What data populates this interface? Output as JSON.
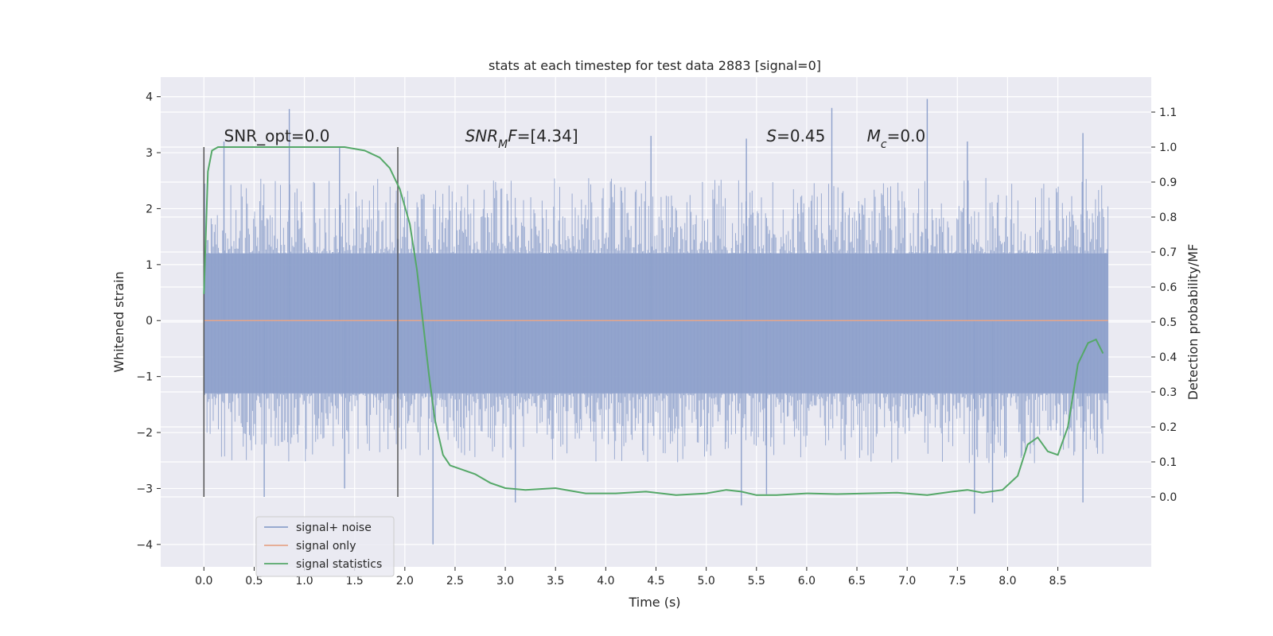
{
  "chart_data": {
    "type": "line",
    "title": "stats at each timestep for test data 2883 [signal=0]",
    "xlabel": "Time (s)",
    "ylabel": "Whitened strain",
    "ylabel_right": "Detection probability/MF",
    "xlim": [
      -0.43,
      9.43
    ],
    "ylim": [
      -4.4,
      4.35
    ],
    "ylim_right": [
      -0.2,
      1.2
    ],
    "x_ticks": [
      0.0,
      0.5,
      1.0,
      1.5,
      2.0,
      2.5,
      3.0,
      3.5,
      4.0,
      4.5,
      5.0,
      5.5,
      6.0,
      6.5,
      7.0,
      7.5,
      8.0,
      8.5
    ],
    "x_tick_labels": [
      "0.0",
      "0.5",
      "1.0",
      "1.5",
      "2.0",
      "2.5",
      "3.0",
      "3.5",
      "4.0",
      "4.5",
      "5.0",
      "5.5",
      "6.0",
      "6.5",
      "7.0",
      "7.5",
      "8.0",
      "8.5"
    ],
    "y_ticks": [
      4,
      3,
      2,
      1,
      0,
      -1,
      -2,
      -3,
      -4
    ],
    "y_tick_labels": [
      "4",
      "3",
      "2",
      "1",
      "0",
      "−1",
      "−2",
      "−3",
      "−4"
    ],
    "y_right_ticks": [
      1.1,
      1.0,
      0.9,
      0.8,
      0.7,
      0.6,
      0.5,
      0.4,
      0.3,
      0.2,
      0.1,
      0.0
    ],
    "y_right_tick_labels": [
      "1.1",
      "1.0",
      "0.9",
      "0.8",
      "0.7",
      "0.6",
      "0.5",
      "0.4",
      "0.3",
      "0.2",
      "0.1",
      "0.0"
    ],
    "grid": true,
    "legend_position": "lower-left",
    "series": [
      {
        "name": "signal+ noise",
        "color": "#8da0cb",
        "x_range": [
          0.0,
          9.0
        ],
        "band_lower": -1.3,
        "band_upper": 1.2,
        "spike_range": [
          -4.0,
          3.95
        ],
        "peaks_up": [
          [
            0.85,
            3.78
          ],
          [
            6.25,
            3.8
          ],
          [
            7.2,
            3.96
          ],
          [
            8.75,
            3.35
          ],
          [
            4.45,
            3.3
          ],
          [
            5.4,
            3.25
          ],
          [
            0.2,
            3.2
          ],
          [
            1.35,
            3.1
          ],
          [
            7.6,
            3.2
          ]
        ],
        "peaks_down": [
          [
            2.28,
            -4.0
          ],
          [
            7.67,
            -3.45
          ],
          [
            5.35,
            -3.3
          ],
          [
            3.1,
            -3.25
          ],
          [
            0.6,
            -3.15
          ],
          [
            5.6,
            -3.1
          ],
          [
            7.85,
            -3.25
          ],
          [
            8.75,
            -3.25
          ],
          [
            1.4,
            -3.0
          ]
        ]
      },
      {
        "name": "signal only",
        "color": "#e5a58a",
        "x": [
          0.0,
          9.0
        ],
        "y": [
          0.0,
          0.0
        ]
      },
      {
        "name": "signal statistics",
        "color": "#55a868",
        "axis": "right",
        "x": [
          0.0,
          0.04,
          0.08,
          0.14,
          0.22,
          0.35,
          0.6,
          1.0,
          1.4,
          1.6,
          1.75,
          1.85,
          1.95,
          2.05,
          2.12,
          2.18,
          2.24,
          2.3,
          2.38,
          2.45,
          2.55,
          2.7,
          2.85,
          3.0,
          3.2,
          3.5,
          3.8,
          4.1,
          4.4,
          4.7,
          5.0,
          5.2,
          5.35,
          5.5,
          5.7,
          6.0,
          6.3,
          6.6,
          6.9,
          7.2,
          7.45,
          7.6,
          7.75,
          7.95,
          8.1,
          8.2,
          8.3,
          8.4,
          8.5,
          8.6,
          8.7,
          8.8,
          8.88,
          8.95
        ],
        "y": [
          0.58,
          0.93,
          0.99,
          1.0,
          1.0,
          1.0,
          1.0,
          1.0,
          1.0,
          0.99,
          0.97,
          0.94,
          0.88,
          0.78,
          0.65,
          0.5,
          0.35,
          0.22,
          0.12,
          0.09,
          0.08,
          0.065,
          0.04,
          0.025,
          0.02,
          0.025,
          0.01,
          0.01,
          0.015,
          0.005,
          0.01,
          0.02,
          0.015,
          0.005,
          0.005,
          0.01,
          0.008,
          0.01,
          0.012,
          0.005,
          0.015,
          0.02,
          0.012,
          0.02,
          0.06,
          0.15,
          0.17,
          0.13,
          0.12,
          0.2,
          0.38,
          0.44,
          0.45,
          0.41
        ]
      }
    ],
    "vertical_markers": [
      {
        "x": 0.0,
        "y_top": 3.1,
        "y_bottom": -3.15
      },
      {
        "x": 1.93,
        "y_top": 3.1,
        "y_bottom": -3.15
      }
    ],
    "annotations": [
      {
        "id": "snr-opt",
        "x": 0.2,
        "y": 3.2,
        "parts": [
          {
            "text": "SNR_opt=0.0",
            "italic": false
          }
        ]
      },
      {
        "id": "snr-mf",
        "x": 2.6,
        "y": 3.2,
        "parts": [
          {
            "text": "SNR",
            "italic": true
          },
          {
            "text": "M",
            "italic": true,
            "sub": true
          },
          {
            "text": "F",
            "italic": true
          },
          {
            "text": "=[4.34]",
            "italic": false
          }
        ]
      },
      {
        "id": "s-value",
        "x": 5.6,
        "y": 3.2,
        "parts": [
          {
            "text": "S",
            "italic": true
          },
          {
            "text": "=0.45",
            "italic": false
          }
        ]
      },
      {
        "id": "mc-value",
        "x": 6.6,
        "y": 3.2,
        "parts": [
          {
            "text": "M",
            "italic": true
          },
          {
            "text": "c",
            "italic": true,
            "sub": true
          },
          {
            "text": "=0.0",
            "italic": false
          }
        ]
      }
    ]
  }
}
